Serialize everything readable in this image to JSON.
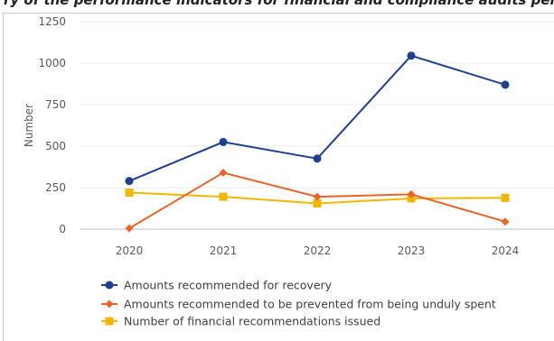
{
  "caption": "ry of the performance indicators for financial and compliance audits performed by the CUI",
  "chart_data": {
    "type": "line",
    "title": "",
    "xlabel": "",
    "ylabel": "Number",
    "ylim": [
      0,
      1250
    ],
    "yticks": [
      0,
      250,
      500,
      750,
      1000,
      1250
    ],
    "categories": [
      "2020",
      "2021",
      "2022",
      "2023",
      "2024"
    ],
    "grid": true,
    "legend_position": "bottom-left",
    "series": [
      {
        "name": "Amounts recommended for recovery",
        "values": [
          290,
          525,
          425,
          1045,
          870
        ],
        "color": "#1f3f8f",
        "marker": "circle"
      },
      {
        "name": "Amounts recommended to be prevented from being unduly spent",
        "values": [
          5,
          340,
          195,
          210,
          45
        ],
        "color": "#e8652a",
        "marker": "diamond"
      },
      {
        "name": "Number of financial recommendations issued",
        "values": [
          220,
          195,
          155,
          185,
          188
        ],
        "color": "#f2b705",
        "marker": "square"
      }
    ]
  }
}
